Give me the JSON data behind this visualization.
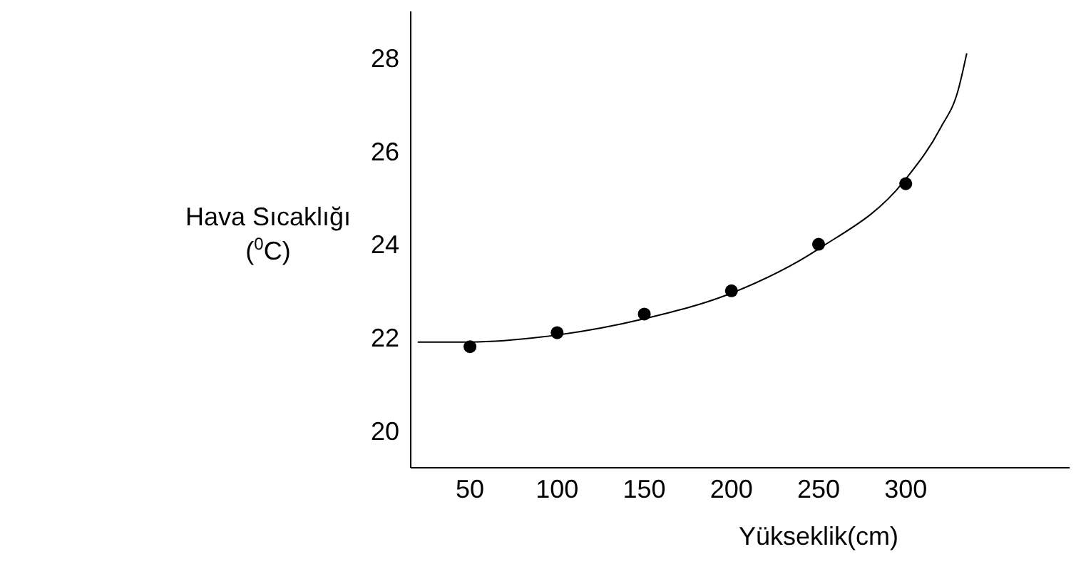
{
  "chart_data": {
    "type": "scatter",
    "xlabel": "Yükseklik(cm)",
    "ylabel": "Hava Sıcaklığı\n($^{0}$C)",
    "xlim": [
      16,
      394
    ],
    "xticks": [
      50,
      100,
      150,
      200,
      250,
      300
    ],
    "ylim": [
      19.2,
      29
    ],
    "yticks": [
      20,
      22,
      24,
      26,
      28
    ],
    "grid": false,
    "marker": "circle",
    "series": [
      {
        "color": "#000000",
        "x": [
          50,
          100,
          150,
          200,
          250,
          300
        ],
        "values": [
          21.8,
          22.1,
          22.5,
          23.0,
          24.0,
          25.3
        ]
      },
      {
        "type": "line",
        "color": "#000000",
        "marker": "none",
        "x": [
          20,
          50,
          100,
          150,
          200,
          250,
          300,
          320,
          330,
          335
        ],
        "values": [
          21.9,
          21.9,
          22.05,
          22.4,
          22.95,
          23.9,
          25.4,
          26.5,
          27.3,
          28.1
        ]
      }
    ]
  }
}
